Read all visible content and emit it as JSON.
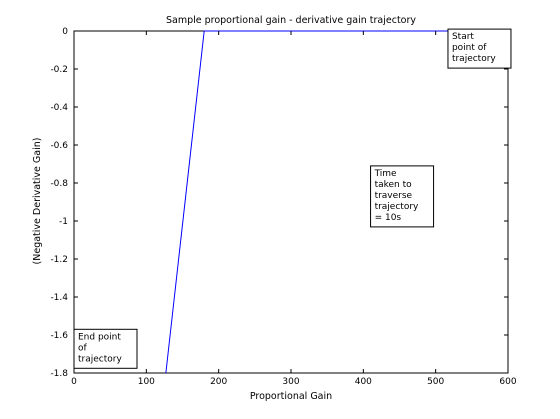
{
  "chart_data": {
    "type": "line",
    "title": "Sample proportional gain - derivative gain trajectory",
    "xlabel": "Proportional Gain",
    "ylabel": "(Negative Derivative Gain)",
    "xlim": [
      0,
      600
    ],
    "ylim": [
      -1.8,
      0
    ],
    "xticks": [
      0,
      100,
      200,
      300,
      400,
      500,
      600
    ],
    "yticks": [
      0,
      -0.2,
      -0.4,
      -0.6,
      -0.8,
      -1,
      -1.2,
      -1.4,
      -1.6,
      -1.8
    ],
    "xtick_labels": [
      "0",
      "100",
      "200",
      "300",
      "400",
      "500",
      "600"
    ],
    "ytick_labels": [
      "0",
      "-0.2",
      "-0.4",
      "-0.6",
      "-0.8",
      "-1",
      "-1.2",
      "-1.4",
      "-1.6",
      "-1.8"
    ],
    "grid": false,
    "series": [
      {
        "color": "#0000ff",
        "x": [
          127,
          180,
          600
        ],
        "y": [
          -1.8,
          0,
          0
        ]
      }
    ],
    "annotations": [
      {
        "lines": [
          "Start",
          "point of",
          "trajectory"
        ],
        "x": 517,
        "y": 0.01
      },
      {
        "lines": [
          "Time",
          "taken to",
          "traverse",
          "trajectory",
          "= 10s"
        ],
        "x": 410,
        "y": -0.71
      },
      {
        "lines": [
          "End point",
          "of",
          "trajectory"
        ],
        "x": 0,
        "y": -1.57
      }
    ]
  }
}
